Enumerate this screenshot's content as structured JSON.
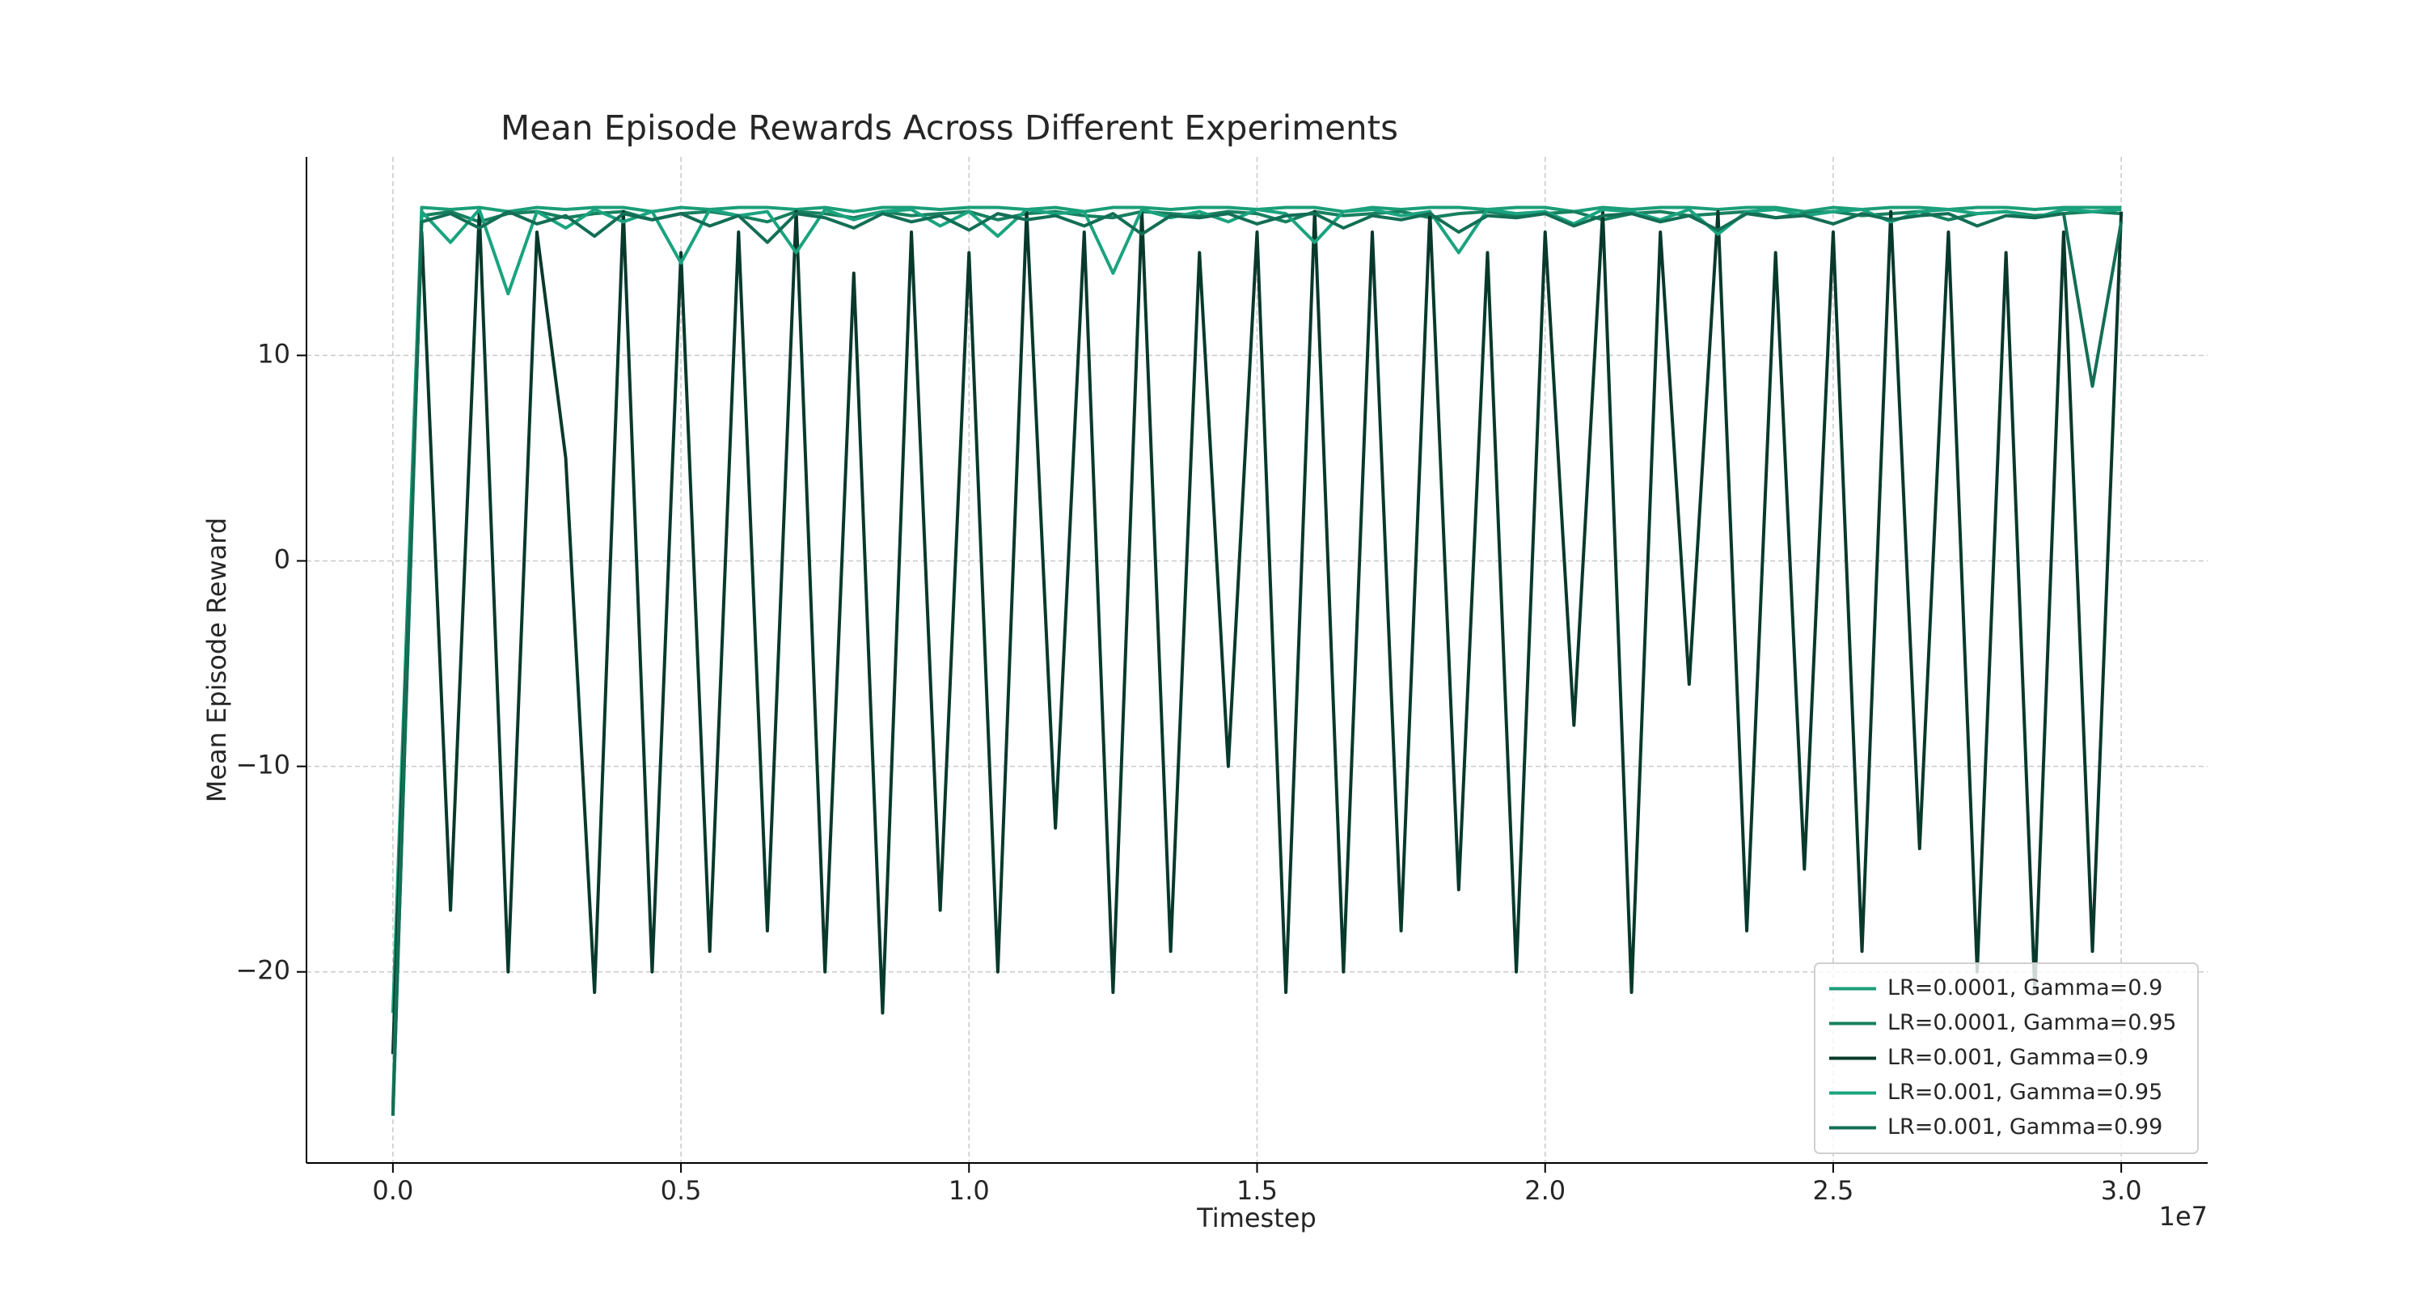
{
  "chart_data": {
    "type": "line",
    "title": "Mean Episode Rewards Across Different Experiments",
    "x_label": "Timestep",
    "y_label": "Mean Episode Reward",
    "x_offset_label": "1e7",
    "xlim": [
      -0.15,
      3.15
    ],
    "ylim": [
      -29.3,
      19.66
    ],
    "xticks": [
      {
        "value": 0,
        "label": "0.0"
      },
      0.5,
      {
        "value": 1,
        "label": "1.0"
      },
      1.5,
      {
        "value": 2,
        "label": "2.0"
      },
      2.5,
      {
        "value": 3,
        "label": "3.0"
      }
    ],
    "yticks": [
      {
        "value": -20,
        "label": "−20"
      },
      {
        "value": -10,
        "label": "−10"
      },
      0,
      10
    ],
    "grid": true,
    "legend": "lower right",
    "x": [
      0,
      0.05,
      0.1,
      0.15,
      0.2,
      0.25,
      0.3,
      0.35,
      0.4,
      0.45,
      0.5,
      0.55,
      0.6,
      0.65,
      0.7,
      0.75,
      0.8,
      0.85,
      0.9,
      0.95,
      1,
      1.05,
      1.1,
      1.15,
      1.2,
      1.25,
      1.3,
      1.35,
      1.4,
      1.45,
      1.5,
      1.55,
      1.6,
      1.65,
      1.7,
      1.75,
      1.8,
      1.85,
      1.9,
      1.95,
      2,
      2.05,
      2.1,
      2.15,
      2.2,
      2.25,
      2.3,
      2.35,
      2.4,
      2.45,
      2.5,
      2.55,
      2.6,
      2.65,
      2.7,
      2.75,
      2.8,
      2.85,
      2.9,
      2.95,
      3
    ],
    "series": [
      {
        "name": "LR=0.0001, Gamma=0.9",
        "color": "#1a9e78",
        "values": [
          -22,
          17.2,
          17.1,
          17.2,
          17.0,
          17.2,
          17.1,
          17.2,
          17.2,
          17.0,
          17.2,
          17.1,
          17.2,
          17.2,
          17.1,
          17.2,
          17.0,
          17.2,
          17.2,
          17.1,
          17.2,
          17.2,
          17.1,
          17.2,
          17.0,
          17.2,
          17.2,
          17.1,
          17.2,
          17.2,
          17.1,
          17.2,
          17.2,
          17.0,
          17.2,
          17.1,
          17.2,
          17.2,
          17.1,
          17.2,
          17.2,
          17.0,
          17.2,
          17.1,
          17.2,
          17.2,
          17.1,
          17.2,
          17.2,
          17.0,
          17.2,
          17.1,
          17.2,
          17.2,
          17.1,
          17.2,
          17.2,
          17.1,
          17.2,
          17.2,
          17.2
        ]
      },
      {
        "name": "LR=0.0001, Gamma=0.95",
        "color": "#17805f",
        "values": [
          -27,
          16.8,
          17.0,
          16.5,
          16.9,
          17.0,
          16.7,
          16.9,
          17.0,
          16.6,
          16.9,
          17.0,
          16.8,
          16.5,
          17.0,
          16.9,
          16.7,
          17.0,
          16.8,
          16.9,
          17.0,
          16.6,
          16.9,
          17.0,
          16.8,
          16.7,
          17.0,
          16.9,
          16.8,
          17.0,
          16.9,
          16.5,
          17.0,
          16.8,
          16.9,
          17.0,
          16.7,
          16.9,
          17.0,
          16.8,
          16.9,
          17.0,
          16.6,
          16.9,
          17.0,
          16.8,
          16.9,
          17.0,
          16.7,
          16.9,
          17.0,
          16.8,
          16.9,
          17.0,
          16.6,
          16.9,
          17.0,
          16.8,
          16.9,
          17.0,
          16.9
        ]
      },
      {
        "name": "LR=0.001, Gamma=0.9",
        "color": "#08392b",
        "values": [
          -24,
          16,
          -17,
          17,
          -20,
          16,
          5,
          -21,
          17,
          -20,
          15,
          -19,
          16,
          -18,
          17,
          -20,
          14,
          -22,
          16,
          -17,
          15,
          -20,
          17,
          -13,
          16,
          -21,
          17,
          -19,
          15,
          -10,
          16,
          -21,
          17,
          -20,
          16,
          -18,
          17,
          -16,
          15,
          -20,
          16,
          -8,
          17,
          -21,
          16,
          -6,
          17,
          -18,
          15,
          -15,
          16,
          -19,
          17,
          -14,
          16,
          -20,
          15,
          -21,
          16,
          -19,
          17
        ]
      },
      {
        "name": "LR=0.001, Gamma=0.95",
        "color": "#1aa37f",
        "values": [
          -26.5,
          17.0,
          15.5,
          17.1,
          13.0,
          17.0,
          16.2,
          17.1,
          16.5,
          17.0,
          14.5,
          17.1,
          16.8,
          17.0,
          15.0,
          17.1,
          16.6,
          17.0,
          17.1,
          16.3,
          17.0,
          15.8,
          17.1,
          16.9,
          17.0,
          14.0,
          17.1,
          16.7,
          17.0,
          16.5,
          17.1,
          16.9,
          15.5,
          17.0,
          17.1,
          16.8,
          17.0,
          15.0,
          17.1,
          16.9,
          17.0,
          16.4,
          17.1,
          17.0,
          16.6,
          17.1,
          15.9,
          17.0,
          17.1,
          16.8,
          17.0,
          17.1,
          16.5,
          17.0,
          17.1,
          16.9,
          17.0,
          16.7,
          17.1,
          17.0,
          17.1
        ]
      },
      {
        "name": "LR=0.001, Gamma=0.99",
        "color": "#136e55",
        "values": [
          -27,
          16.5,
          16.9,
          16.2,
          17.0,
          16.4,
          16.8,
          15.8,
          16.9,
          16.6,
          16.9,
          16.3,
          16.8,
          15.5,
          16.9,
          16.7,
          16.2,
          16.9,
          16.5,
          16.8,
          16.1,
          16.9,
          16.6,
          16.8,
          16.3,
          16.9,
          15.9,
          16.8,
          16.7,
          16.9,
          16.4,
          16.8,
          16.9,
          16.2,
          16.8,
          16.6,
          16.9,
          16.0,
          16.8,
          16.7,
          16.9,
          16.3,
          16.8,
          16.9,
          16.5,
          16.8,
          16.1,
          16.9,
          16.7,
          16.8,
          16.4,
          16.9,
          16.6,
          16.8,
          16.9,
          16.3,
          16.8,
          16.7,
          16.9,
          8.5,
          16.5
        ]
      }
    ]
  }
}
